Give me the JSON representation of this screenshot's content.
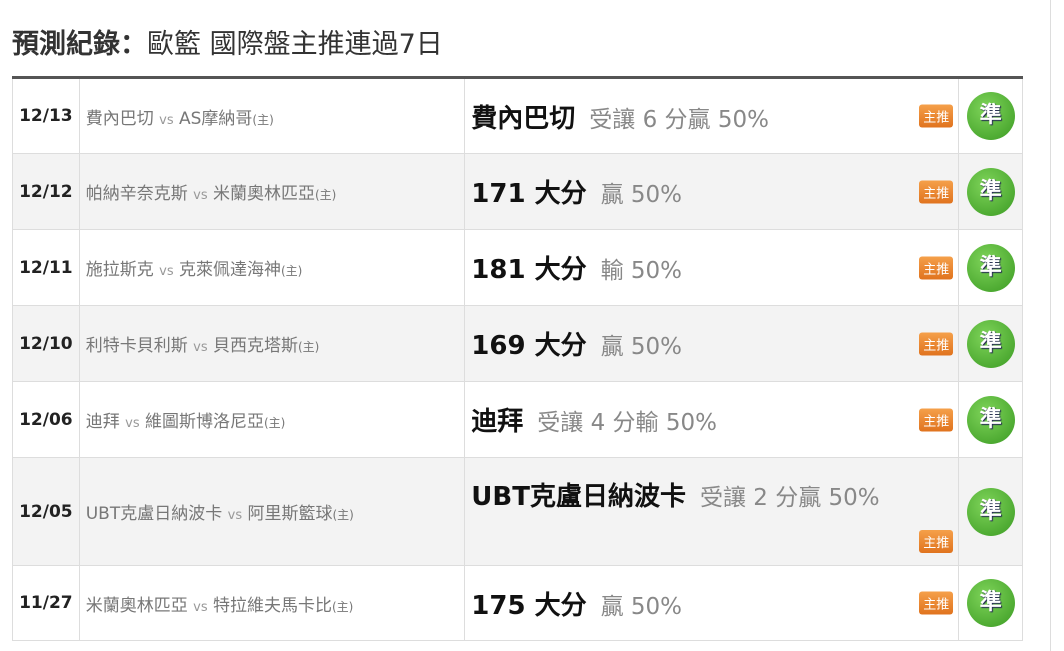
{
  "title": {
    "bold": "預測紀錄：",
    "rest": "歐籃 國際盤主推連過7日"
  },
  "tag_label": "主推",
  "result_label": "準",
  "colors": {
    "tag": "#e8862f",
    "badge": "#4caf2a"
  },
  "rows": [
    {
      "date": "12/13",
      "away": "費內巴切",
      "vs": "vs",
      "home": "AS摩納哥",
      "home_mark": "(主)",
      "pick": "費內巴切",
      "detail": "受讓 6 分贏 50%"
    },
    {
      "date": "12/12",
      "away": "帕納辛奈克斯",
      "vs": "vs",
      "home": "米蘭奧林匹亞",
      "home_mark": "(主)",
      "pick": "171 大分",
      "detail": "贏 50%"
    },
    {
      "date": "12/11",
      "away": "施拉斯克",
      "vs": "vs",
      "home": "克萊佩達海神",
      "home_mark": "(主)",
      "pick": "181 大分",
      "detail": "輸 50%"
    },
    {
      "date": "12/10",
      "away": "利特卡貝利斯",
      "vs": "vs",
      "home": "貝西克塔斯",
      "home_mark": "(主)",
      "pick": "169 大分",
      "detail": "贏 50%"
    },
    {
      "date": "12/06",
      "away": "迪拜",
      "vs": "vs",
      "home": "維圖斯博洛尼亞",
      "home_mark": "(主)",
      "pick": "迪拜",
      "detail": "受讓 4 分輸 50%"
    },
    {
      "date": "12/05",
      "away": "UBT克盧日納波卡",
      "vs": "vs",
      "home": "阿里斯籃球",
      "home_mark": "(主)",
      "pick": "UBT克盧日納波卡",
      "detail": "受讓 2 分贏 50%"
    },
    {
      "date": "11/27",
      "away": "米蘭奧林匹亞",
      "vs": "vs",
      "home": "特拉維夫馬卡比",
      "home_mark": "(主)",
      "pick": "175 大分",
      "detail": "贏 50%"
    }
  ]
}
